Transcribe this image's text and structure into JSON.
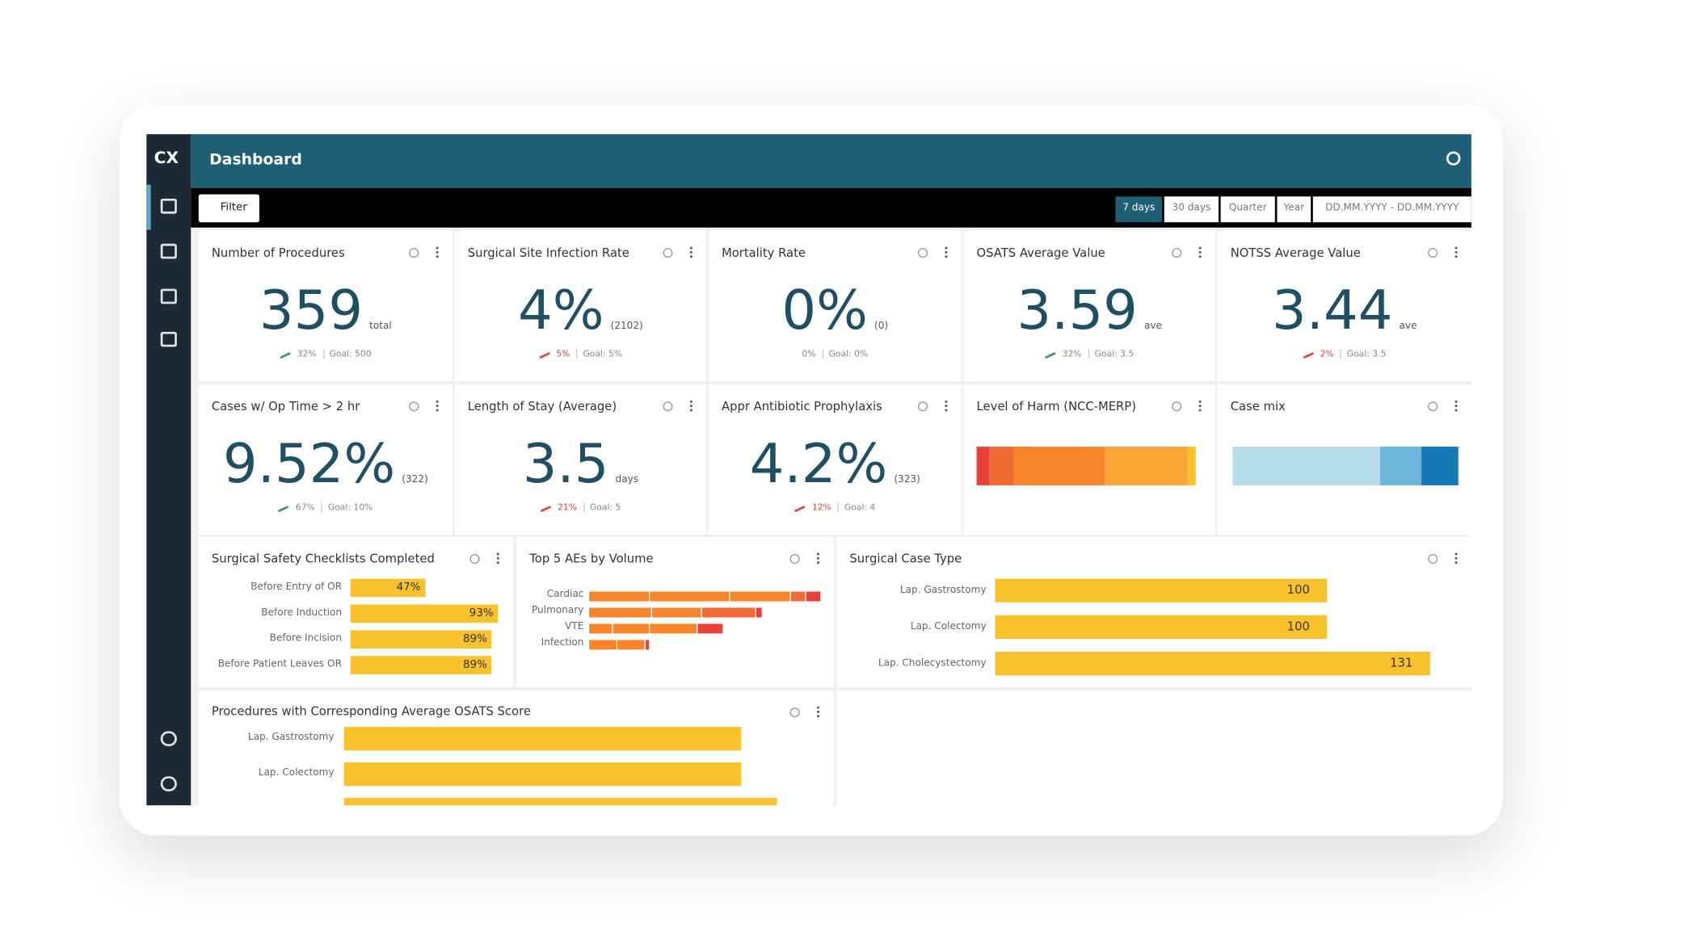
{
  "header": {
    "logo": "CX",
    "title": "Dashboard"
  },
  "toolbar": {
    "filter": "Filter",
    "ranges": [
      "7 days",
      "30 days",
      "Quarter",
      "Year",
      "DD.MM.YYYY - DD.MM.YYYY"
    ]
  },
  "kpis": [
    {
      "title": "Number of Procedures",
      "value": "359",
      "unit": "total",
      "change": "32%",
      "goal": "Goal: 500",
      "trend": "up"
    },
    {
      "title": "Surgical Site Infection Rate",
      "value": "4%",
      "unit": "(2102)",
      "change": "5%",
      "goal": "Goal: 5%",
      "trend": "down"
    },
    {
      "title": "Mortality Rate",
      "value": "0%",
      "unit": "(0)",
      "change": "0%",
      "goal": "Goal: 0%",
      "trend": "none"
    },
    {
      "title": "OSATS Average Value",
      "value": "3.59",
      "unit": "ave",
      "change": "32%",
      "goal": "Goal: 3.5",
      "trend": "up"
    },
    {
      "title": "NOTSS Average Value",
      "value": "3.44",
      "unit": "ave",
      "change": "2%",
      "goal": "Goal: 3.5",
      "trend": "down"
    },
    {
      "title": "Cases w/ Op Time > 2 hr",
      "value": "9.52%",
      "unit": "(322)",
      "change": "67%",
      "goal": "Goal: 10%",
      "trend": "up"
    },
    {
      "title": "Length of Stay (Average)",
      "value": "3.5",
      "unit": "days",
      "change": "21%",
      "goal": "Goal: 5",
      "trend": "down"
    },
    {
      "title": "Appr Antibiotic Prophylaxis",
      "value": "4.2%",
      "unit": "(323)",
      "change": "12%",
      "goal": "Goal: 4",
      "trend": "down"
    }
  ],
  "harm": {
    "title": "Level of Harm (NCC-MERP)"
  },
  "casemix": {
    "title": "Case mix"
  },
  "checklist": {
    "title": "Surgical Safety Checklists Completed",
    "categories": [
      "Before Entry of OR",
      "Before Induction",
      "Before Incision",
      "Before Patient Leaves OR"
    ],
    "values": [
      47,
      93,
      89,
      89
    ],
    "value_labels": [
      "47%",
      "93%",
      "89%",
      "89%"
    ]
  },
  "aes": {
    "title": "Top 5 AEs by Volume",
    "categories": [
      "Cardiac",
      "Pulmonary",
      "VTE",
      "Infection"
    ]
  },
  "casetype": {
    "title": "Surgical Case Type",
    "categories": [
      "Lap. Gastrostomy",
      "Lap. Colectomy",
      "Lap. Cholecystectomy"
    ],
    "values": [
      100,
      100,
      131
    ]
  },
  "osats": {
    "title": "Procedures with Corresponding Average OSATS Score",
    "categories": [
      "Lap. Gastrostomy",
      "Lap. Colectomy"
    ]
  }
}
